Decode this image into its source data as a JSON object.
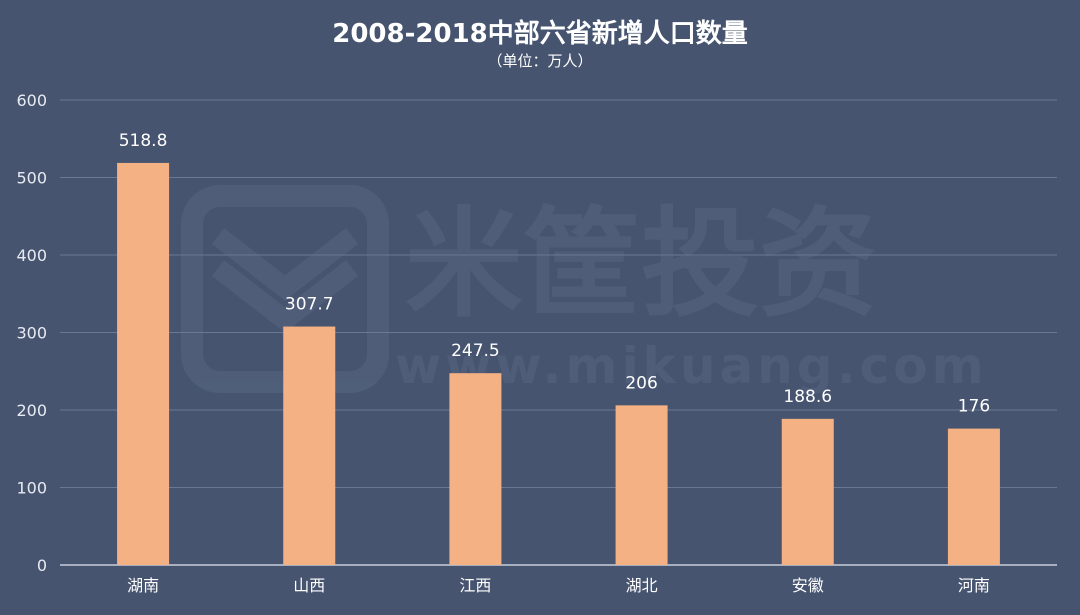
{
  "chart_data": {
    "type": "bar",
    "title": "2008-2018中部六省新增人口数量",
    "subtitle": "（单位：万人）",
    "categories": [
      "湖南",
      "山西",
      "江西",
      "湖北",
      "安徽",
      "河南"
    ],
    "values": [
      518.8,
      307.7,
      247.5,
      206,
      188.6,
      176
    ],
    "data_labels": [
      "518.8",
      "307.7",
      "247.5",
      "206",
      "188.6",
      "176"
    ],
    "yticks": [
      "0",
      "100",
      "200",
      "300",
      "400",
      "500",
      "600"
    ],
    "ylim": [
      0,
      600
    ],
    "grid": true,
    "bar_color": "#f4b183",
    "background_color": "#465470",
    "grid_color": "#6b7892"
  },
  "watermark": {
    "brand": "米筐投资",
    "url": "www.mikuang.com",
    "icon": "mikuang-logo-icon"
  }
}
